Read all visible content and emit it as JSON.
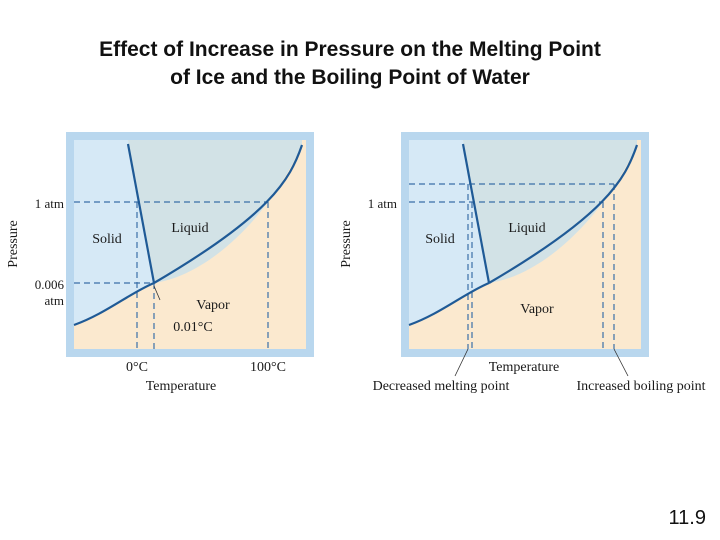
{
  "title": {
    "line1": "Effect of Increase in Pressure on the Melting Point",
    "line2": "of Ice and the Boiling Point of Water"
  },
  "left_diagram": {
    "y_axis_label": "Pressure",
    "x_axis_label": "Temperature",
    "pressure_tick_1atm": "1 atm",
    "pressure_tick_triple_line1": "0.006",
    "pressure_tick_triple_line2": "atm",
    "region_solid": "Solid",
    "region_liquid": "Liquid",
    "region_vapor": "Vapor",
    "triple_point_temp": "0.01°C",
    "temp_tick_0": "0°C",
    "temp_tick_100": "100°C"
  },
  "right_diagram": {
    "y_axis_label": "Pressure",
    "x_axis_label": "Temperature",
    "pressure_tick_1atm": "1 atm",
    "region_solid": "Solid",
    "region_liquid": "Liquid",
    "region_vapor": "Vapor",
    "callout_melting": "Decreased melting point",
    "callout_boiling": "Increased boiling point"
  },
  "colors": {
    "solid": "#d6e9f6",
    "liquid": "#d2e2e6",
    "vapor": "#fbe9cf",
    "curve": "#1f5a96",
    "frame": "#b9d7ee",
    "dash": "#3a6fa8"
  },
  "slide_number": "11.9"
}
